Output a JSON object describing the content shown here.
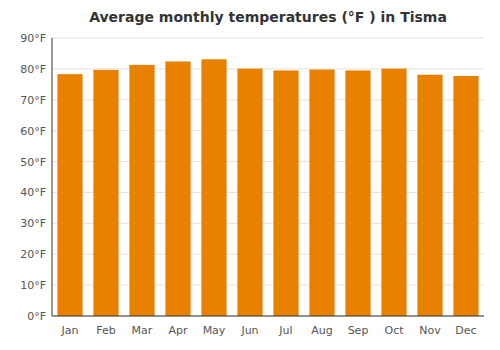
{
  "chart_data": {
    "type": "bar",
    "title": "Average monthly temperatures (°F ) in Tisma",
    "categories": [
      "Jan",
      "Feb",
      "Mar",
      "Apr",
      "May",
      "Jun",
      "Jul",
      "Aug",
      "Sep",
      "Oct",
      "Nov",
      "Dec"
    ],
    "values": [
      78.3,
      79.7,
      81.3,
      82.4,
      83.1,
      80.1,
      79.5,
      79.8,
      79.5,
      80.1,
      78.1,
      77.7
    ],
    "color": "#E88000",
    "ylim": [
      0,
      90
    ],
    "yticks": [
      {
        "value": 0,
        "label": "0°F"
      },
      {
        "value": 10,
        "label": "10°F"
      },
      {
        "value": 20,
        "label": "20°F"
      },
      {
        "value": 30,
        "label": "30°F"
      },
      {
        "value": 40,
        "label": "40°F"
      },
      {
        "value": 50,
        "label": "50°F"
      },
      {
        "value": 60,
        "label": "60°F"
      },
      {
        "value": 70,
        "label": "70°F"
      },
      {
        "value": 80,
        "label": "80°F"
      },
      {
        "value": 90,
        "label": "90°F"
      }
    ],
    "grid": true
  }
}
